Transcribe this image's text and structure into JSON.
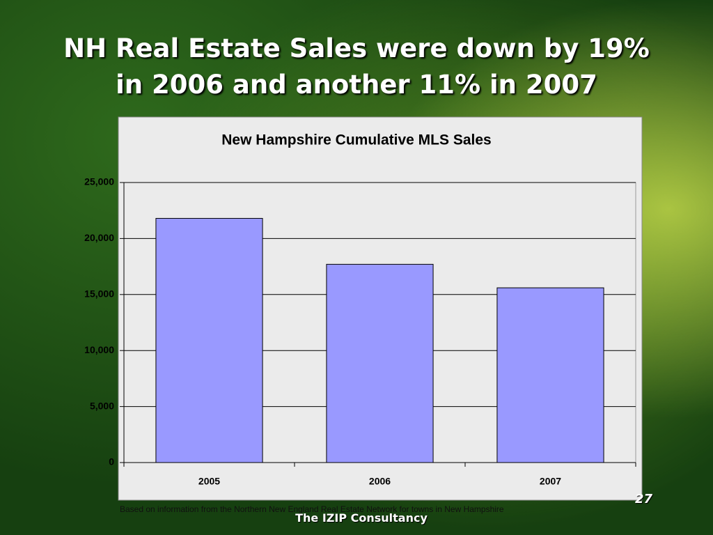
{
  "slide_title": "NH Real Estate Sales were down by 19% in 2006 and another 11% in 2007",
  "chart_data": {
    "type": "bar",
    "title": "New Hampshire Cumulative MLS Sales",
    "categories": [
      "2005",
      "2006",
      "2007"
    ],
    "values": [
      21800,
      17700,
      15600
    ],
    "color": "#9999ff",
    "ylim": [
      0,
      25000
    ],
    "yticks": [
      0,
      {
        "value": 5000,
        "label": "5,000"
      },
      {
        "value": 10000,
        "label": "10,000"
      },
      {
        "value": 15000,
        "label": "15,000"
      },
      {
        "value": 20000,
        "label": "20,000"
      },
      {
        "value": 25000,
        "label": "25,000"
      }
    ],
    "grid": true
  },
  "footnote": "Based on information from the Northern New England Real Estate Network for towns in New Hampshire",
  "footer": "The IZIP Consultancy",
  "page_number": "27"
}
